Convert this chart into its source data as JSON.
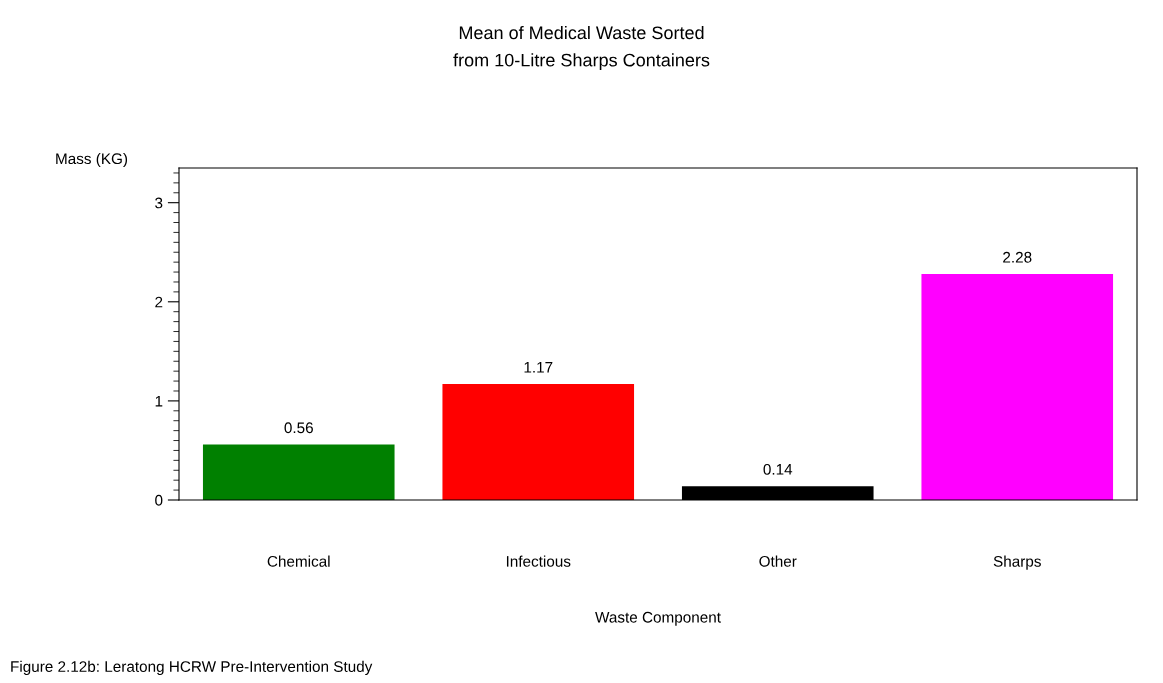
{
  "chart_data": {
    "type": "bar",
    "title": "Mean of Medical Waste Sorted\nfrom 10-Litre Sharps Containers",
    "xlabel": "Waste Component",
    "ylabel": "Mass (KG)",
    "categories": [
      "Chemical",
      "Infectious",
      "Other",
      "Sharps"
    ],
    "values": [
      0.56,
      1.17,
      0.14,
      2.28
    ],
    "colors": [
      "#008000",
      "#ff0000",
      "#000000",
      "#ff00ff"
    ],
    "data_labels": true,
    "ylim": [
      0,
      3.35
    ],
    "yticks": [
      0,
      {
        "value": 0.1,
        "label": null
      },
      {
        "value": 0.2,
        "label": null
      },
      {
        "value": 0.3,
        "label": null
      },
      {
        "value": 0.4,
        "label": null
      },
      {
        "value": 0.5,
        "label": null
      },
      {
        "value": 0.6,
        "label": null
      },
      {
        "value": 0.7,
        "label": null
      },
      {
        "value": 0.8,
        "label": null
      },
      {
        "value": 0.9,
        "label": null
      },
      1,
      {
        "value": 1.1,
        "label": null
      },
      {
        "value": 1.2,
        "label": null
      },
      {
        "value": 1.3,
        "label": null
      },
      {
        "value": 1.4,
        "label": null
      },
      {
        "value": 1.5,
        "label": null
      },
      {
        "value": 1.6,
        "label": null
      },
      {
        "value": 1.7,
        "label": null
      },
      {
        "value": 1.8,
        "label": null
      },
      {
        "value": 1.9,
        "label": null
      },
      2,
      {
        "value": 2.1,
        "label": null
      },
      {
        "value": 2.2,
        "label": null
      },
      {
        "value": 2.3,
        "label": null
      },
      {
        "value": 2.4,
        "label": null
      },
      {
        "value": 2.5,
        "label": null
      },
      {
        "value": 2.6,
        "label": null
      },
      {
        "value": 2.7,
        "label": null
      },
      {
        "value": 2.8,
        "label": null
      },
      {
        "value": 2.9,
        "label": null
      },
      3,
      {
        "value": 3.1,
        "label": null
      },
      {
        "value": 3.2,
        "label": null
      },
      {
        "value": 3.3,
        "label": null
      }
    ],
    "grid": false,
    "legend": false,
    "annotations": [
      "Figure 2.12b: Leratong HCRW Pre-Intervention Study"
    ]
  }
}
